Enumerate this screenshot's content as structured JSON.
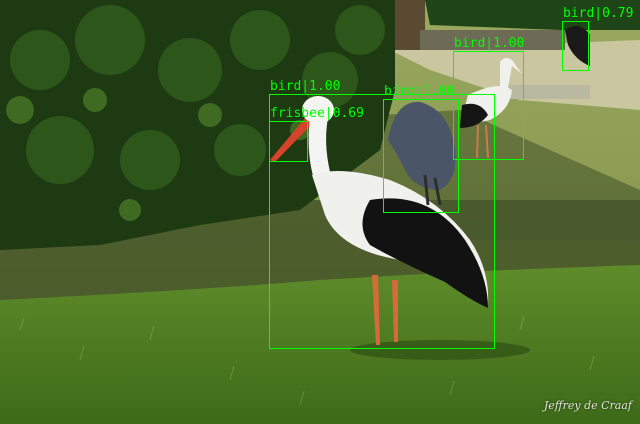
{
  "image": {
    "watermark": "Jeffrey de Craaf"
  },
  "detections": [
    {
      "label": "bird|1.00"
    },
    {
      "label": "frisbee|0.69"
    },
    {
      "label": "bird|1.00"
    },
    {
      "label": "bird|1.00"
    },
    {
      "label": "bird|0.79"
    }
  ],
  "colors": {
    "box": "#00ff00",
    "label_text": "#00ff00"
  }
}
